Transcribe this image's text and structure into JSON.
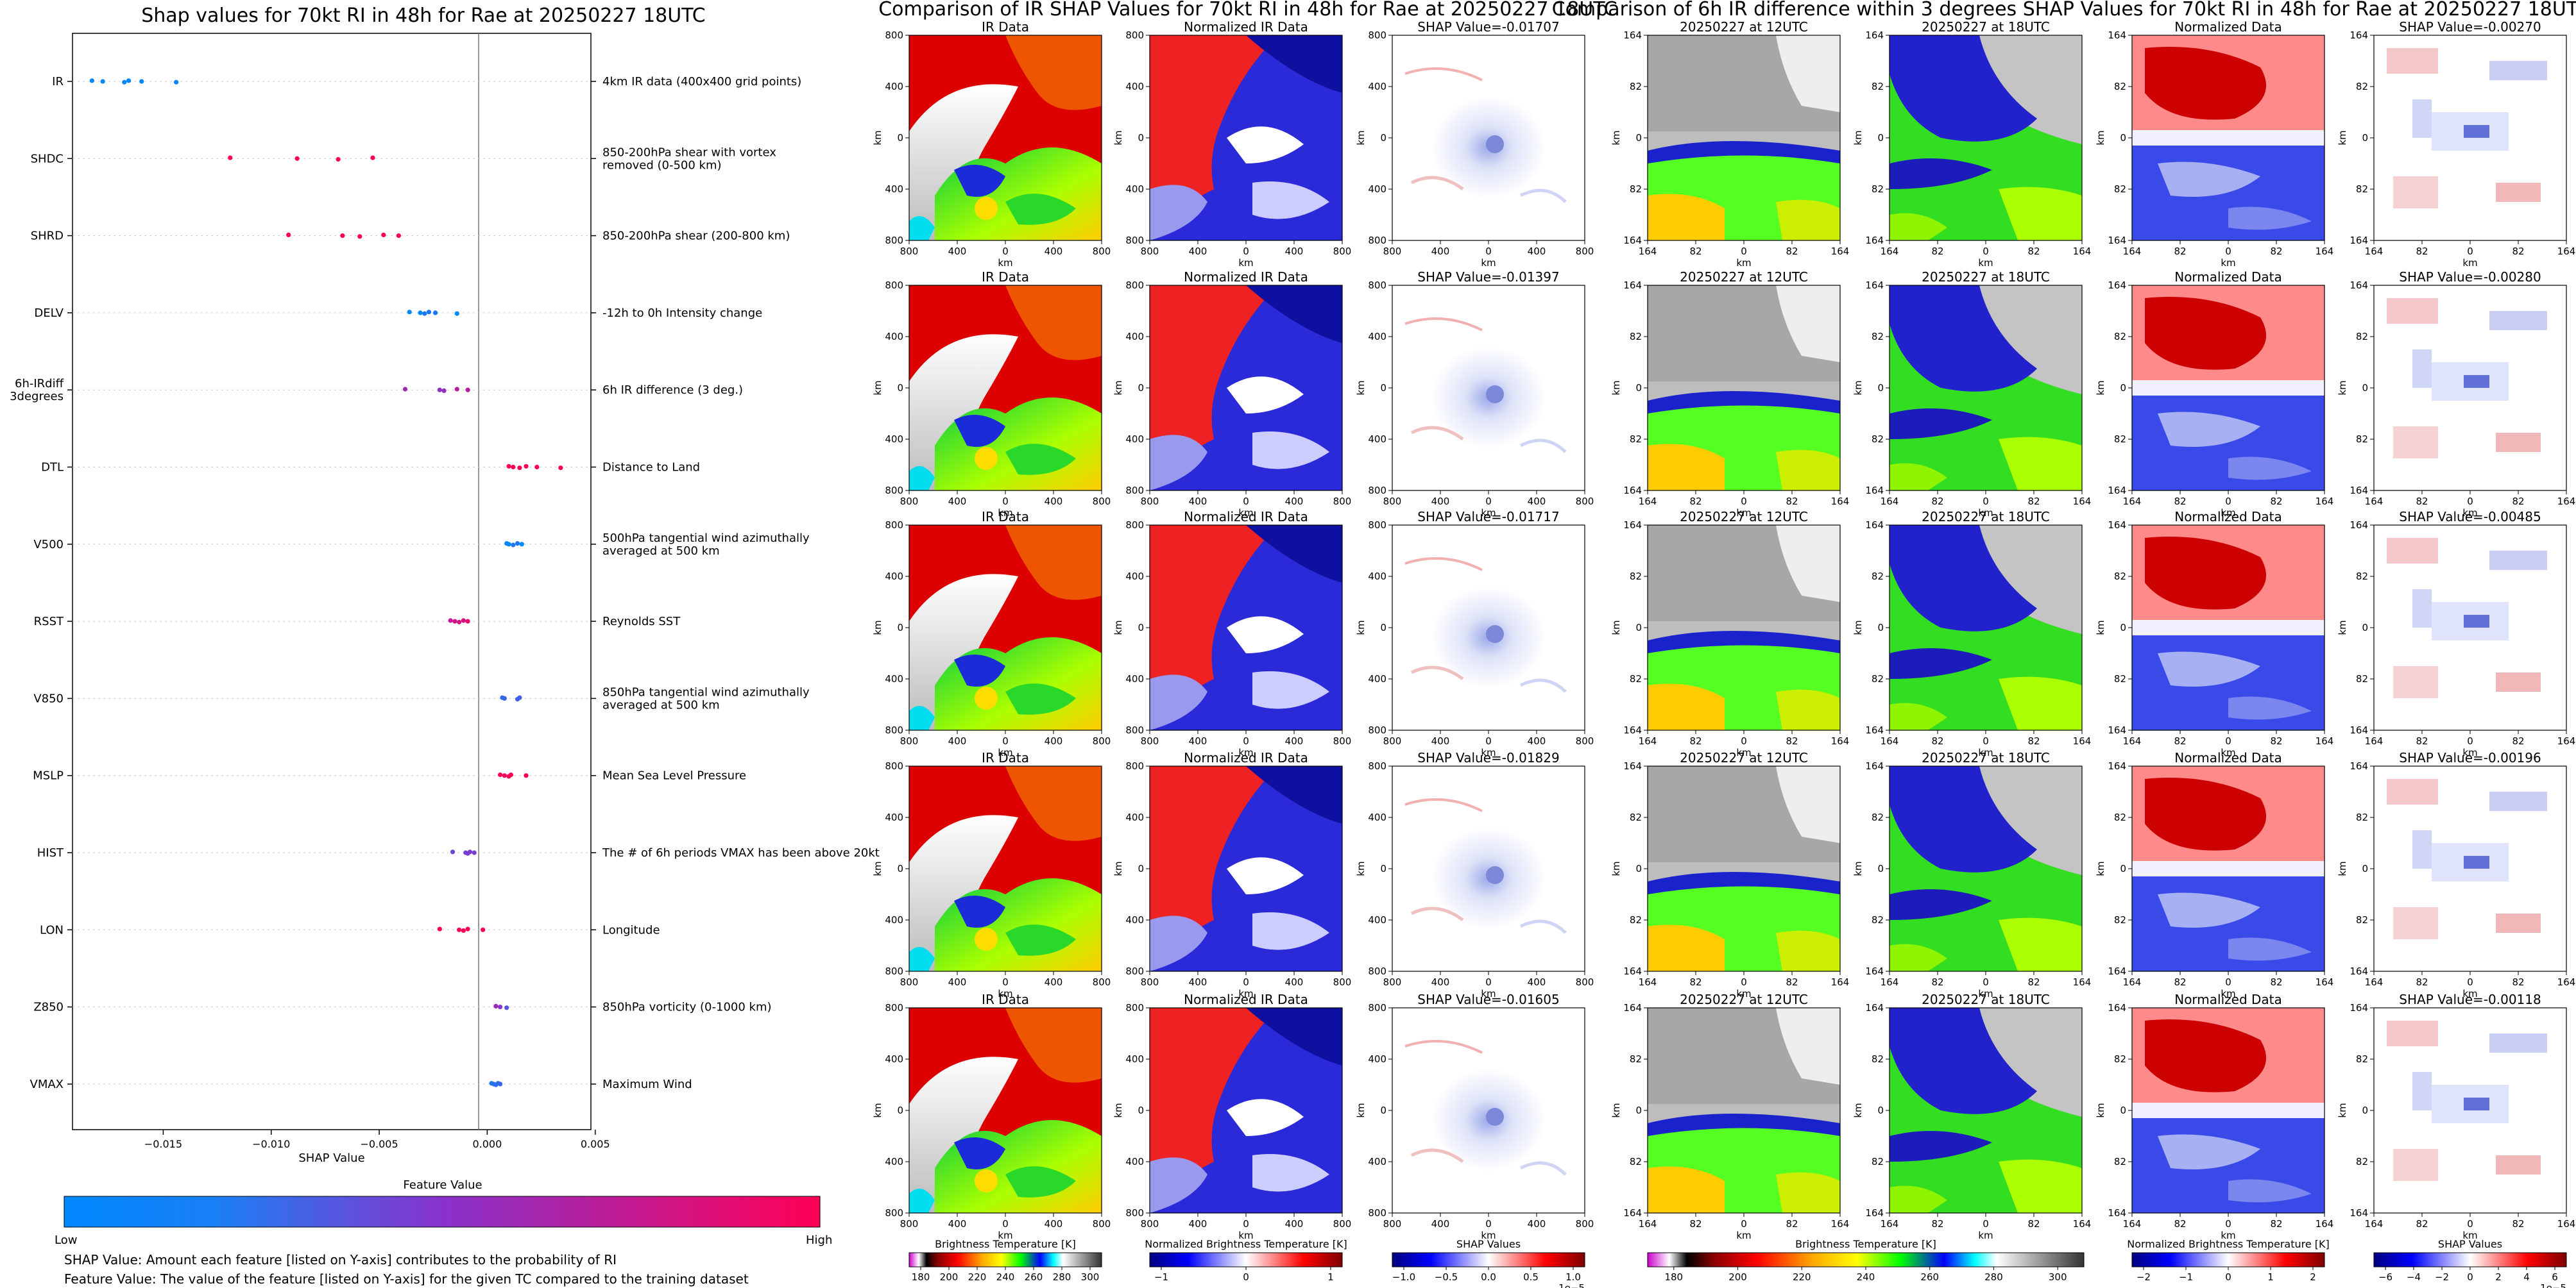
{
  "shap_panel": {
    "title": "Shap values for 70kt RI in 48h for Rae at 20250227 18UTC",
    "xlabel": "SHAP Value",
    "x_ticks": [
      "−0.015",
      "−0.010",
      "−0.005",
      "0.000",
      "0.005"
    ],
    "colorbar_label": "Feature Value",
    "colorbar_low": "Low",
    "colorbar_high": "High",
    "caption_1": "SHAP Value: Amount each feature [listed on Y-axis] contributes to the probability of RI",
    "caption_2": "Feature Value: The value of the feature [listed on Y-axis] for the given TC compared to the training dataset",
    "colors": {
      "low": "#0088ff",
      "mid": "#8833cc",
      "high": "#ff0055"
    }
  },
  "chart_data": {
    "type": "scatter",
    "xlim": [
      -0.0192,
      0.0048
    ],
    "x_tick_values": [
      -0.015,
      -0.01,
      -0.005,
      0.0,
      0.005
    ],
    "features": [
      {
        "name": "IR",
        "description": "4km IR data (400x400 grid points)",
        "points": [
          [
            -0.0183,
            0.0
          ],
          [
            -0.0178,
            0.0
          ],
          [
            -0.0168,
            0.0
          ],
          [
            -0.0166,
            0.0
          ],
          [
            -0.016,
            0.0
          ],
          [
            -0.0144,
            0.0
          ]
        ]
      },
      {
        "name": "SHDC",
        "description": "850-200hPa shear with vortex removed (0-500 km)",
        "points": [
          [
            -0.0119,
            1.0
          ],
          [
            -0.0088,
            1.0
          ],
          [
            -0.0069,
            1.0
          ],
          [
            -0.0053,
            1.0
          ]
        ]
      },
      {
        "name": "SHRD",
        "description": "850-200hPa shear (200-800 km)",
        "points": [
          [
            -0.0092,
            1.0
          ],
          [
            -0.0067,
            1.0
          ],
          [
            -0.0059,
            1.0
          ],
          [
            -0.0048,
            1.0
          ],
          [
            -0.0041,
            1.0
          ]
        ]
      },
      {
        "name": "DELV",
        "description": "-12h to 0h Intensity change",
        "points": [
          [
            -0.0036,
            0.0
          ],
          [
            -0.0031,
            0.0
          ],
          [
            -0.0029,
            0.1
          ],
          [
            -0.0027,
            0.1
          ],
          [
            -0.0024,
            0.1
          ],
          [
            -0.0014,
            0.0
          ]
        ]
      },
      {
        "name": "6h-IRdiff 3degrees",
        "description": "6h IR difference (3 deg.)",
        "points": [
          [
            -0.0038,
            0.6
          ],
          [
            -0.0022,
            0.55
          ],
          [
            -0.002,
            0.55
          ],
          [
            -0.0014,
            0.7
          ],
          [
            -0.0009,
            0.7
          ]
        ]
      },
      {
        "name": "DTL",
        "description": "Distance to Land",
        "points": [
          [
            0.001,
            1.0
          ],
          [
            0.0012,
            1.0
          ],
          [
            0.0015,
            1.0
          ],
          [
            0.0018,
            1.0
          ],
          [
            0.0023,
            1.0
          ],
          [
            0.0034,
            1.0
          ]
        ]
      },
      {
        "name": "V500",
        "description": "500hPa tangential wind azimuthally averaged at 500 km",
        "points": [
          [
            0.0009,
            0.0
          ],
          [
            0.001,
            0.0
          ],
          [
            0.0012,
            0.1
          ],
          [
            0.0014,
            0.1
          ],
          [
            0.0016,
            0.0
          ]
        ]
      },
      {
        "name": "RSST",
        "description": "Reynolds SST",
        "points": [
          [
            -0.0017,
            0.75
          ],
          [
            -0.0015,
            0.8
          ],
          [
            -0.0013,
            0.8
          ],
          [
            -0.0011,
            0.85
          ],
          [
            -0.0009,
            0.9
          ]
        ]
      },
      {
        "name": "V850",
        "description": "850hPa tangential wind azimuthally averaged at 500 km",
        "points": [
          [
            0.0007,
            0.2
          ],
          [
            0.0008,
            0.2
          ],
          [
            0.0014,
            0.25
          ],
          [
            0.0015,
            0.25
          ]
        ]
      },
      {
        "name": "MSLP",
        "description": "Mean Sea Level Pressure",
        "points": [
          [
            0.0006,
            1.0
          ],
          [
            0.0008,
            0.95
          ],
          [
            0.001,
            1.0
          ],
          [
            0.0011,
            1.0
          ],
          [
            0.0018,
            1.0
          ]
        ]
      },
      {
        "name": "HIST",
        "description": "The # of 6h periods VMAX has been above 20kt",
        "points": [
          [
            -0.0016,
            0.4
          ],
          [
            -0.001,
            0.4
          ],
          [
            -0.0009,
            0.45
          ],
          [
            -0.0008,
            0.45
          ],
          [
            -0.0006,
            0.45
          ]
        ]
      },
      {
        "name": "LON",
        "description": "Longitude",
        "points": [
          [
            -0.0022,
            1.0
          ],
          [
            -0.0013,
            1.0
          ],
          [
            -0.0011,
            1.0
          ],
          [
            -0.0009,
            1.0
          ],
          [
            -0.0002,
            1.0
          ]
        ]
      },
      {
        "name": "Z850",
        "description": "850hPa vorticity (0-1000 km)",
        "points": [
          [
            0.0004,
            0.6
          ],
          [
            0.0006,
            0.5
          ],
          [
            0.0009,
            0.3
          ]
        ]
      },
      {
        "name": "VMAX",
        "description": "Maximum Wind",
        "points": [
          [
            0.0002,
            0.1
          ],
          [
            0.0003,
            0.15
          ],
          [
            0.0004,
            0.15
          ],
          [
            0.0005,
            0.2
          ],
          [
            0.0006,
            0.2
          ]
        ]
      }
    ]
  },
  "ir_section": {
    "title": "Comparison of IR SHAP Values for 70kt RI in 48h for Rae at 20250227 18UTC",
    "col_titles": [
      "IR Data",
      "Normalized IR Data"
    ],
    "shap_titles": [
      "SHAP Value=-0.01707",
      "SHAP Value=-0.01397",
      "SHAP Value=-0.01717",
      "SHAP Value=-0.01829",
      "SHAP Value=-0.01605"
    ],
    "axis_label": "km",
    "x_ticks": [
      "800",
      "400",
      "0",
      "400",
      "800"
    ],
    "y_ticks": [
      "800",
      "400",
      "0",
      "400",
      "800"
    ]
  },
  "diff_section": {
    "title": "Comparison of 6h IR difference within 3 degrees SHAP Values for 70kt RI in 48h for Rae at 20250227 18UTC",
    "col_titles": [
      "20250227 at 12UTC",
      "20250227 at 18UTC",
      "Normalized Data"
    ],
    "shap_titles": [
      "SHAP Value=-0.00270",
      "SHAP Value=-0.00280",
      "SHAP Value=-0.00485",
      "SHAP Value=-0.00196",
      "SHAP Value=-0.00118"
    ],
    "axis_label": "km",
    "x_ticks": [
      "164",
      "82",
      "0",
      "82",
      "164"
    ],
    "y_ticks": [
      "164",
      "82",
      "0",
      "82",
      "164"
    ]
  },
  "colorbars": [
    {
      "label": "Brightness Temperature [K]",
      "ticks": [
        "180",
        "200",
        "220",
        "240",
        "260",
        "280",
        "300"
      ],
      "offset": ""
    },
    {
      "label": "Normalized Brightness Temperature [K]",
      "ticks": [
        "−1",
        "0",
        "1"
      ],
      "offset": ""
    },
    {
      "label": "SHAP Values",
      "ticks": [
        "−1.0",
        "−0.5",
        "0.0",
        "0.5",
        "1.0"
      ],
      "offset": "1e−5"
    },
    {
      "label": "Brightness Temperature [K]",
      "ticks": [
        "180",
        "200",
        "220",
        "240",
        "260",
        "280",
        "300"
      ],
      "offset": ""
    },
    {
      "label": "Normalized Brightness Temperature [K]",
      "ticks": [
        "−2",
        "−1",
        "0",
        "1",
        "2"
      ],
      "offset": ""
    },
    {
      "label": "SHAP Values",
      "ticks": [
        "−6",
        "−4",
        "−2",
        "0",
        "2",
        "4",
        "6"
      ],
      "offset": "1e−5"
    }
  ]
}
